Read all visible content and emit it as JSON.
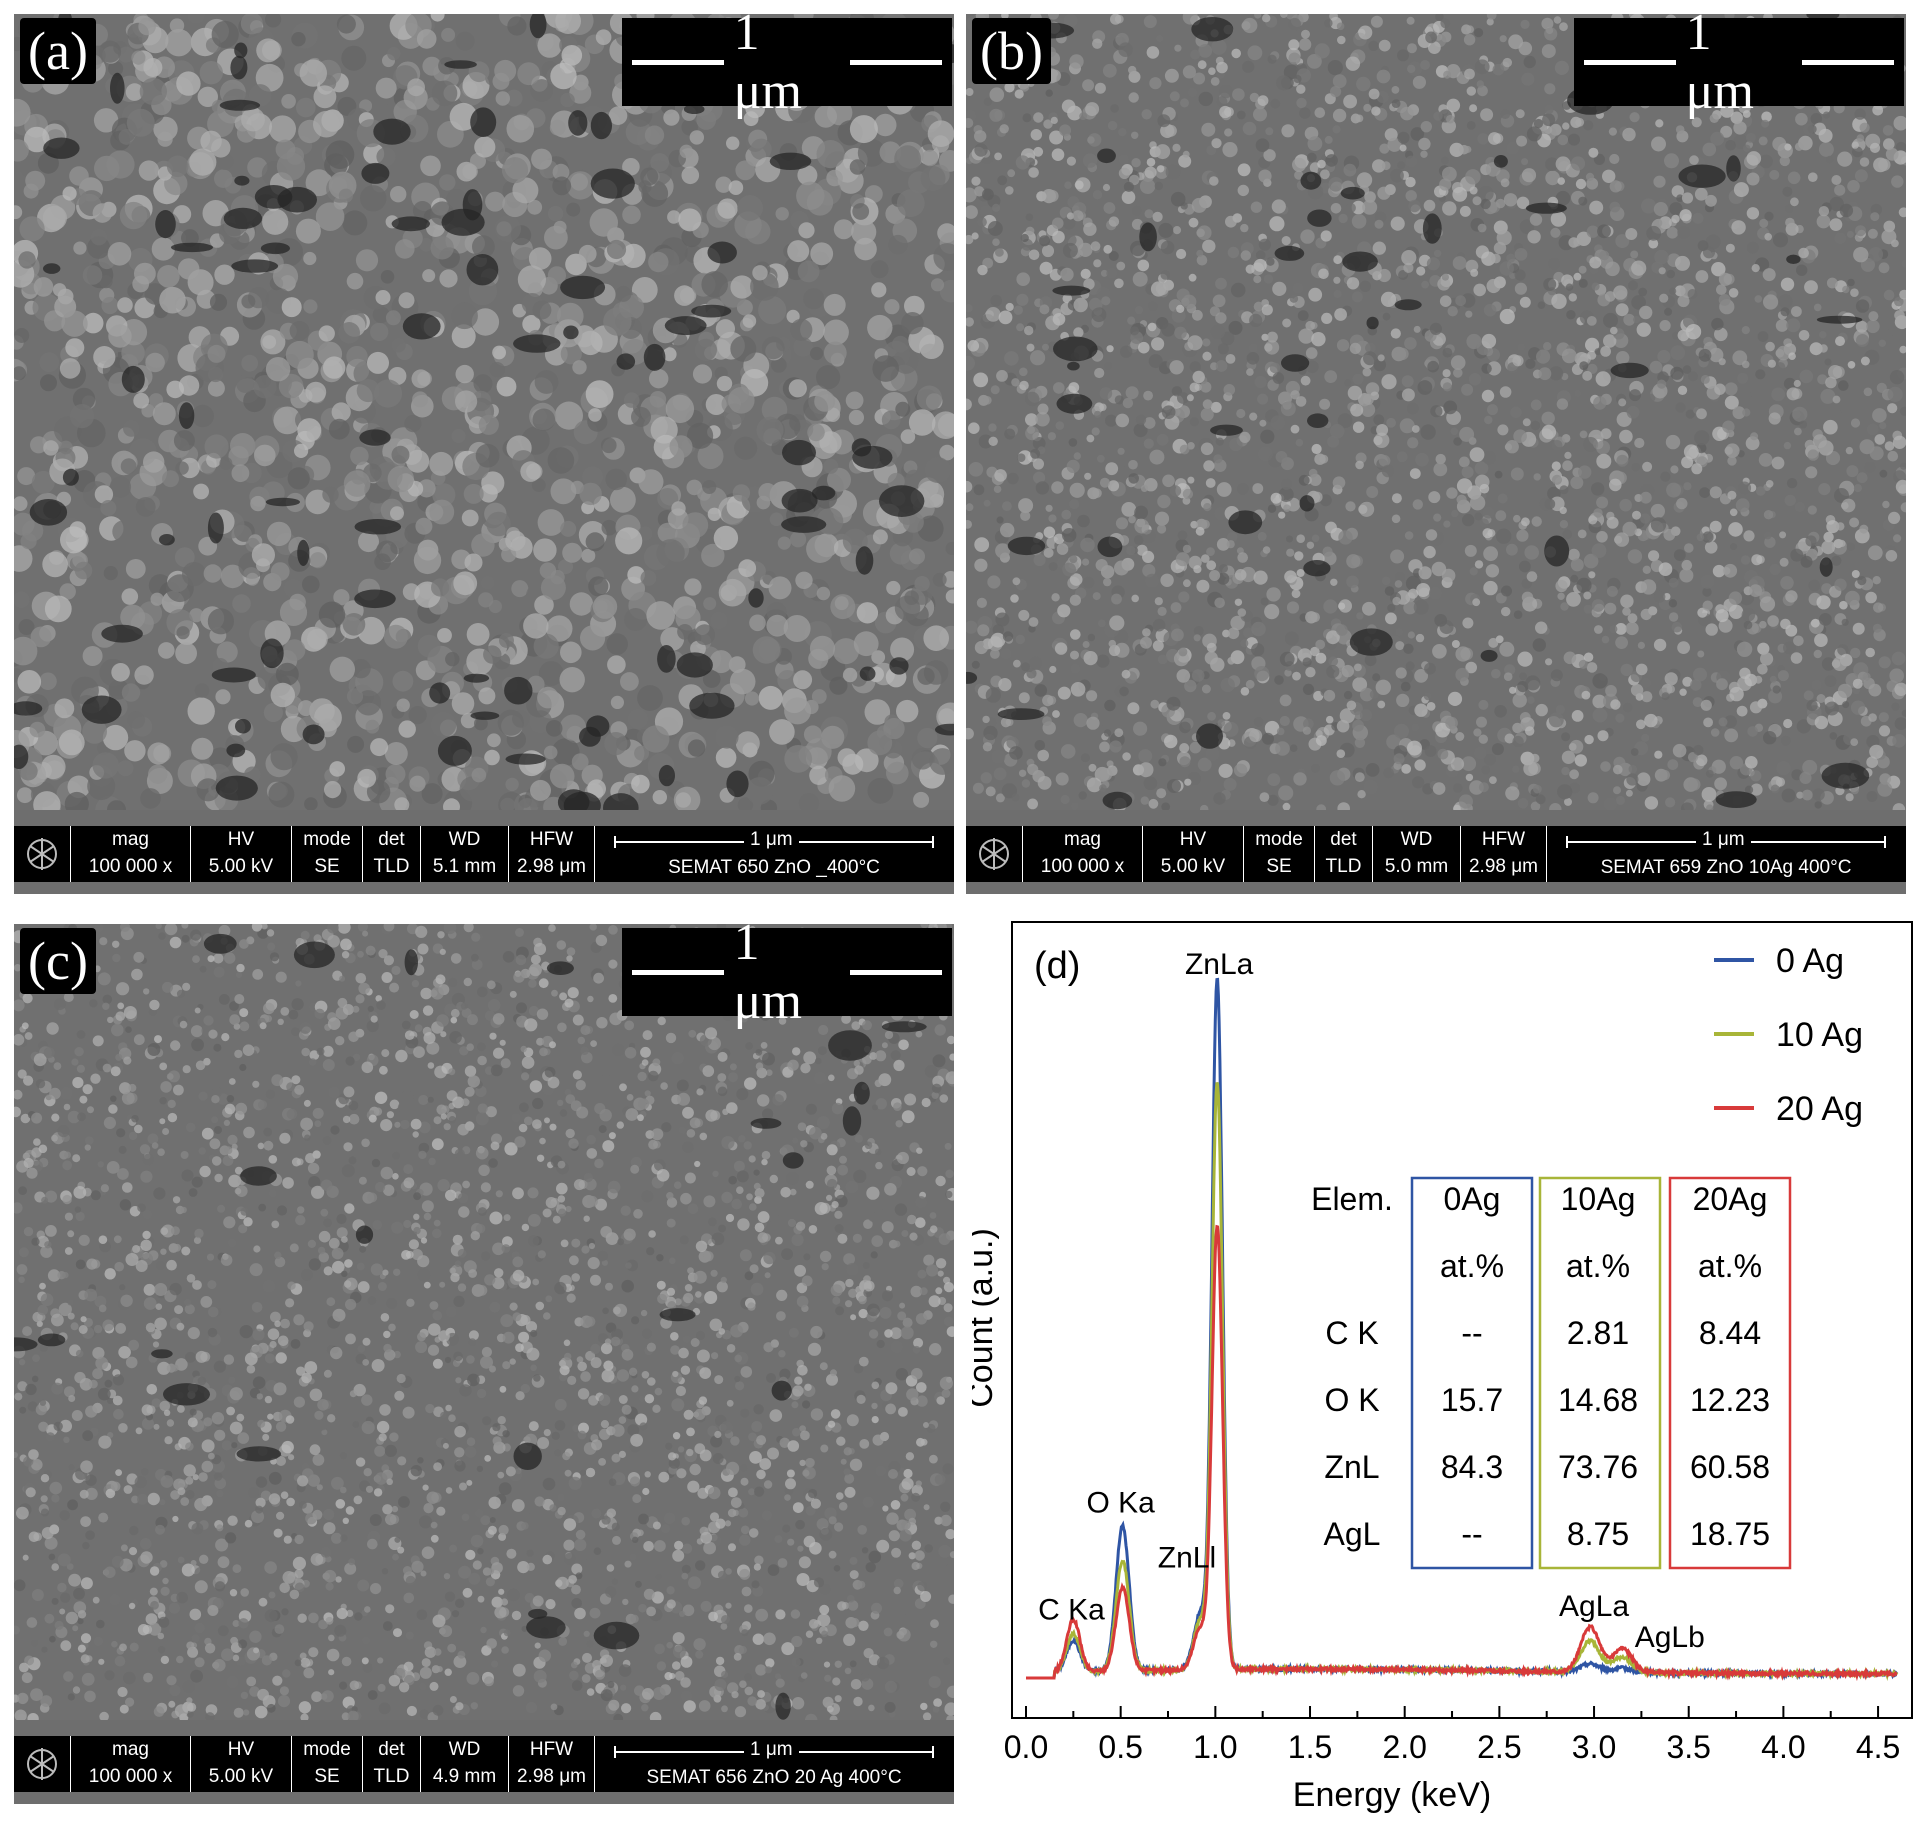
{
  "panels": {
    "a": {
      "tag": "(a)",
      "scale_label": "1 μm",
      "databar": {
        "headers": [
          "mag",
          "HV",
          "mode",
          "det",
          "WD",
          "HFW"
        ],
        "values": [
          "100 000 x",
          "5.00 kV",
          "SE",
          "TLD",
          "5.1 mm",
          "2.98 μm"
        ],
        "bar_label": "1 μm",
        "sample_id": "SEMAT 650 ZnO _400°C"
      }
    },
    "b": {
      "tag": "(b)",
      "scale_label": "1 μm",
      "databar": {
        "headers": [
          "mag",
          "HV",
          "mode",
          "det",
          "WD",
          "HFW"
        ],
        "values": [
          "100 000 x",
          "5.00 kV",
          "SE",
          "TLD",
          "5.0 mm",
          "2.98 μm"
        ],
        "bar_label": "1 μm",
        "sample_id": "SEMAT 659 ZnO 10Ag 400°C"
      }
    },
    "c": {
      "tag": "(c)",
      "scale_label": "1 μm",
      "databar": {
        "headers": [
          "mag",
          "HV",
          "mode",
          "det",
          "WD",
          "HFW"
        ],
        "values": [
          "100 000 x",
          "5.00 kV",
          "SE",
          "TLD",
          "4.9 mm",
          "2.98 μm"
        ],
        "bar_label": "1 μm",
        "sample_id": "SEMAT 656 ZnO 20 Ag 400°C"
      }
    }
  },
  "chart_data": {
    "type": "line",
    "panel_tag": "(d)",
    "xlabel": "Energy (keV)",
    "ylabel": "Count (a.u.)",
    "xlim": [
      0.0,
      4.6
    ],
    "ylim": [
      0,
      100
    ],
    "x_ticks": [
      "0.0",
      "0.5",
      "1.0",
      "1.5",
      "2.0",
      "2.5",
      "3.0",
      "3.5",
      "4.0",
      "4.5"
    ],
    "legend_position": "top-right",
    "colors": {
      "0 Ag": "#2f55a4",
      "10 Ag": "#a8b538",
      "20 Ag": "#d83a3a"
    },
    "series": [
      {
        "name": "0 Ag",
        "peaks": [
          [
            0.25,
            4.5,
            0.035
          ],
          [
            0.51,
            21,
            0.035
          ],
          [
            0.92,
            8,
            0.035
          ],
          [
            1.01,
            100,
            0.028
          ],
          [
            2.98,
            1.2,
            0.05
          ],
          [
            3.15,
            0.6,
            0.05
          ]
        ]
      },
      {
        "name": "10 Ag",
        "peaks": [
          [
            0.25,
            5.5,
            0.035
          ],
          [
            0.51,
            16,
            0.035
          ],
          [
            0.92,
            7,
            0.035
          ],
          [
            1.01,
            85,
            0.028
          ],
          [
            2.98,
            4.5,
            0.05
          ],
          [
            3.15,
            2.2,
            0.05
          ]
        ]
      },
      {
        "name": "20 Ag",
        "peaks": [
          [
            0.25,
            7.5,
            0.035
          ],
          [
            0.51,
            12,
            0.035
          ],
          [
            0.92,
            6,
            0.035
          ],
          [
            1.01,
            64,
            0.028
          ],
          [
            2.98,
            6.5,
            0.05
          ],
          [
            3.15,
            3.5,
            0.05
          ]
        ]
      }
    ],
    "peak_labels": [
      {
        "text": "C Ka",
        "x": 0.24,
        "y": 8.5
      },
      {
        "text": "O Ka",
        "x": 0.5,
        "y": 24
      },
      {
        "text": "ZnLl",
        "x": 0.85,
        "y": 16
      },
      {
        "text": "ZnLa",
        "x": 1.02,
        "y": 102
      },
      {
        "text": "AgLa",
        "x": 3.0,
        "y": 9
      },
      {
        "text": "AgLb",
        "x": 3.4,
        "y": 4.5
      }
    ],
    "table": {
      "columns": [
        "Elem.",
        "0Ag",
        "10Ag",
        "20Ag"
      ],
      "units": [
        "",
        "at.%",
        "at.%",
        "at.%"
      ],
      "rows": [
        [
          "C K",
          "--",
          "2.81",
          "8.44"
        ],
        [
          "O K",
          "15.7",
          "14.68",
          "12.23"
        ],
        [
          "ZnL",
          "84.3",
          "73.76",
          "60.58"
        ],
        [
          "AgL",
          "--",
          "8.75",
          "18.75"
        ]
      ]
    }
  }
}
